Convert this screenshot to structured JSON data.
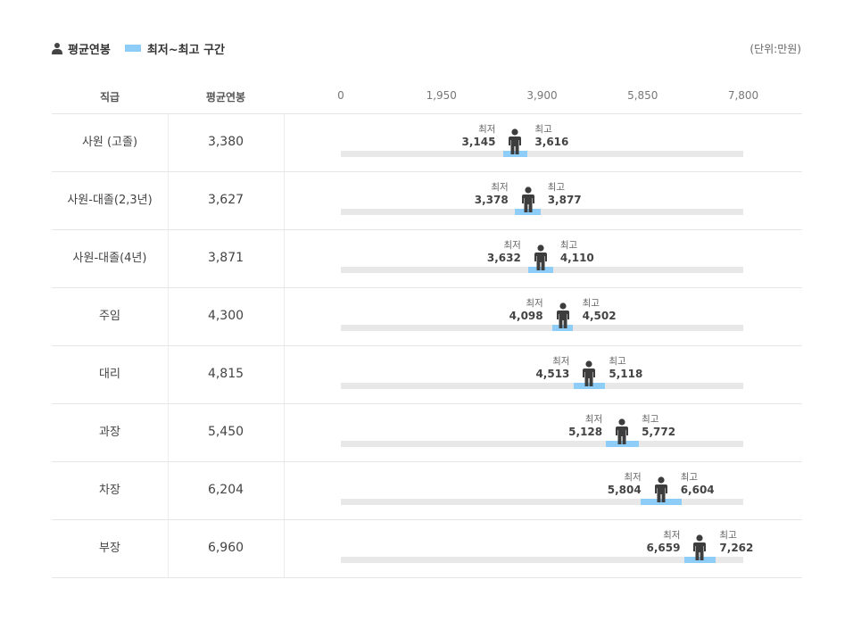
{
  "legend": {
    "avg_label": "평균연봉",
    "range_label": "최저~최고 구간",
    "avg_icon": "person-icon",
    "range_color": "#8ecdf7"
  },
  "unit_label": "(단위:만원)",
  "headers": {
    "grade": "직급",
    "avg": "평균연봉"
  },
  "min_label": "최저",
  "max_label": "최고",
  "chart_data": {
    "type": "bar",
    "xlim": [
      0,
      7800
    ],
    "x_ticks": [
      "0",
      "1,950",
      "3,900",
      "5,850",
      "7,800"
    ],
    "x_tick_values": [
      0,
      1950,
      3900,
      5850,
      7800
    ],
    "grid": false,
    "legend_position": "top-left",
    "series": [
      {
        "name": "평균연봉",
        "values": [
          3380,
          3627,
          3871,
          4300,
          4815,
          5450,
          6204,
          6960
        ]
      },
      {
        "name": "최저",
        "values": [
          3145,
          3378,
          3632,
          4098,
          4513,
          5128,
          5804,
          6659
        ]
      },
      {
        "name": "최고",
        "values": [
          3616,
          3877,
          4110,
          4502,
          5118,
          5772,
          6604,
          7262
        ]
      }
    ],
    "rows": [
      {
        "grade": "사원 (고졸)",
        "avg": 3380,
        "avg_text": "3,380",
        "min": 3145,
        "min_text": "3,145",
        "max": 3616,
        "max_text": "3,616"
      },
      {
        "grade": "사원-대졸(2,3년)",
        "avg": 3627,
        "avg_text": "3,627",
        "min": 3378,
        "min_text": "3,378",
        "max": 3877,
        "max_text": "3,877"
      },
      {
        "grade": "사원-대졸(4년)",
        "avg": 3871,
        "avg_text": "3,871",
        "min": 3632,
        "min_text": "3,632",
        "max": 4110,
        "max_text": "4,110"
      },
      {
        "grade": "주임",
        "avg": 4300,
        "avg_text": "4,300",
        "min": 4098,
        "min_text": "4,098",
        "max": 4502,
        "max_text": "4,502"
      },
      {
        "grade": "대리",
        "avg": 4815,
        "avg_text": "4,815",
        "min": 4513,
        "min_text": "4,513",
        "max": 5118,
        "max_text": "5,118"
      },
      {
        "grade": "과장",
        "avg": 5450,
        "avg_text": "5,450",
        "min": 5128,
        "min_text": "5,128",
        "max": 5772,
        "max_text": "5,772"
      },
      {
        "grade": "차장",
        "avg": 6204,
        "avg_text": "6,204",
        "min": 5804,
        "min_text": "5,804",
        "max": 6604,
        "max_text": "6,604"
      },
      {
        "grade": "부장",
        "avg": 6960,
        "avg_text": "6,960",
        "min": 6659,
        "min_text": "6,659",
        "max": 7262,
        "max_text": "7,262"
      }
    ]
  }
}
